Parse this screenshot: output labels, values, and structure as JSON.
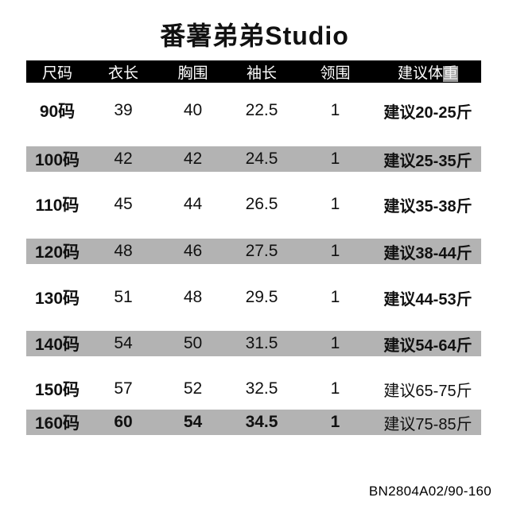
{
  "title": "番薯弟弟Studio",
  "colors": {
    "header_bg": "#000000",
    "header_fg": "#ffffff",
    "stripe": "#b3b3b3"
  },
  "table": {
    "headers": [
      "尺码",
      "衣长",
      "胸围",
      "袖长",
      "领围"
    ],
    "weight_header": {
      "prefix": "建议体",
      "highlight": "重"
    },
    "rows": [
      {
        "size": "90码",
        "length": "39",
        "chest": "40",
        "sleeve": "22.5",
        "collar": "1",
        "weight": "建议20-25斤",
        "striped": false,
        "weight_bold": true,
        "values_bold": false
      },
      {
        "size": "100码",
        "length": "42",
        "chest": "42",
        "sleeve": "24.5",
        "collar": "1",
        "weight": "建议25-35斤",
        "striped": true,
        "weight_bold": true,
        "values_bold": false
      },
      {
        "size": "110码",
        "length": "45",
        "chest": "44",
        "sleeve": "26.5",
        "collar": "1",
        "weight": "建议35-38斤",
        "striped": false,
        "weight_bold": true,
        "values_bold": false
      },
      {
        "size": "120码",
        "length": "48",
        "chest": "46",
        "sleeve": "27.5",
        "collar": "1",
        "weight": "建议38-44斤",
        "striped": true,
        "weight_bold": true,
        "values_bold": false
      },
      {
        "size": "130码",
        "length": "51",
        "chest": "48",
        "sleeve": "29.5",
        "collar": "1",
        "weight": "建议44-53斤",
        "striped": false,
        "weight_bold": true,
        "values_bold": false
      },
      {
        "size": "140码",
        "length": "54",
        "chest": "50",
        "sleeve": "31.5",
        "collar": "1",
        "weight": "建议54-64斤",
        "striped": true,
        "weight_bold": true,
        "values_bold": false
      },
      {
        "size": "150码",
        "length": "57",
        "chest": "52",
        "sleeve": "32.5",
        "collar": "1",
        "weight": "建议65-75斤",
        "striped": false,
        "weight_bold": false,
        "values_bold": false
      },
      {
        "size": "160码",
        "length": "60",
        "chest": "54",
        "sleeve": "34.5",
        "collar": "1",
        "weight": "建议75-85斤",
        "striped": true,
        "weight_bold": false,
        "values_bold": true
      }
    ]
  },
  "footer": {
    "code": "BN2804A02/90-160"
  }
}
